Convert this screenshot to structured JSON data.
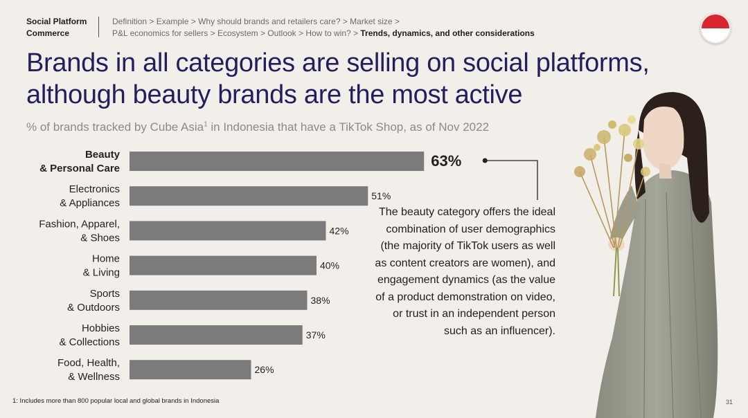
{
  "header": {
    "section": "Social Platform Commerce",
    "breadcrumb_line1": "Definition > Example > Why should brands and retailers care? > Market size >",
    "breadcrumb_line2": "P&L economics for sellers > Ecosystem > Outlook > How to win? > ",
    "breadcrumb_current": "Trends, dynamics, and other considerations",
    "flag_icon": "indonesia-flag-icon",
    "flag_colors": [
      "#d9252f",
      "#ffffff"
    ]
  },
  "headline": "Brands in all categories are selling on social platforms, although beauty brands are the most active",
  "subtitle": {
    "text_before": "% of brands tracked by Cube Asia",
    "footnote_ref": "1",
    "text_after": " in Indonesia that have a TikTok Shop, as of Nov 2022"
  },
  "chart_data": {
    "type": "bar",
    "orientation": "horizontal",
    "categories": [
      [
        "Beauty",
        "& Personal Care"
      ],
      [
        "Electronics",
        "& Appliances"
      ],
      [
        "Fashion, Apparel,",
        "& Shoes"
      ],
      [
        "Home",
        "& Living"
      ],
      [
        "Sports",
        "& Outdoors"
      ],
      [
        "Hobbies",
        "& Collections"
      ],
      [
        "Food, Health,",
        "& Wellness"
      ]
    ],
    "values": [
      63,
      51,
      42,
      40,
      38,
      37,
      26
    ],
    "value_labels": [
      "63%",
      "51%",
      "42%",
      "40%",
      "38%",
      "37%",
      "26%"
    ],
    "highlight_index": 0,
    "bar_color": "#7b7b7b",
    "grid": false,
    "legend": false
  },
  "annotation": "The beauty category offers the ideal combination of user demographics (the majority of TikTok users as well as content creators are women), and engagement dynamics (as the value of a product demonstration on video, or trust in an independent person such as an influencer).",
  "footnote": "1: Includes more than 800 popular local and global brands in Indonesia",
  "page_number": "31",
  "photo_icon": "woman-with-flowers-photo"
}
